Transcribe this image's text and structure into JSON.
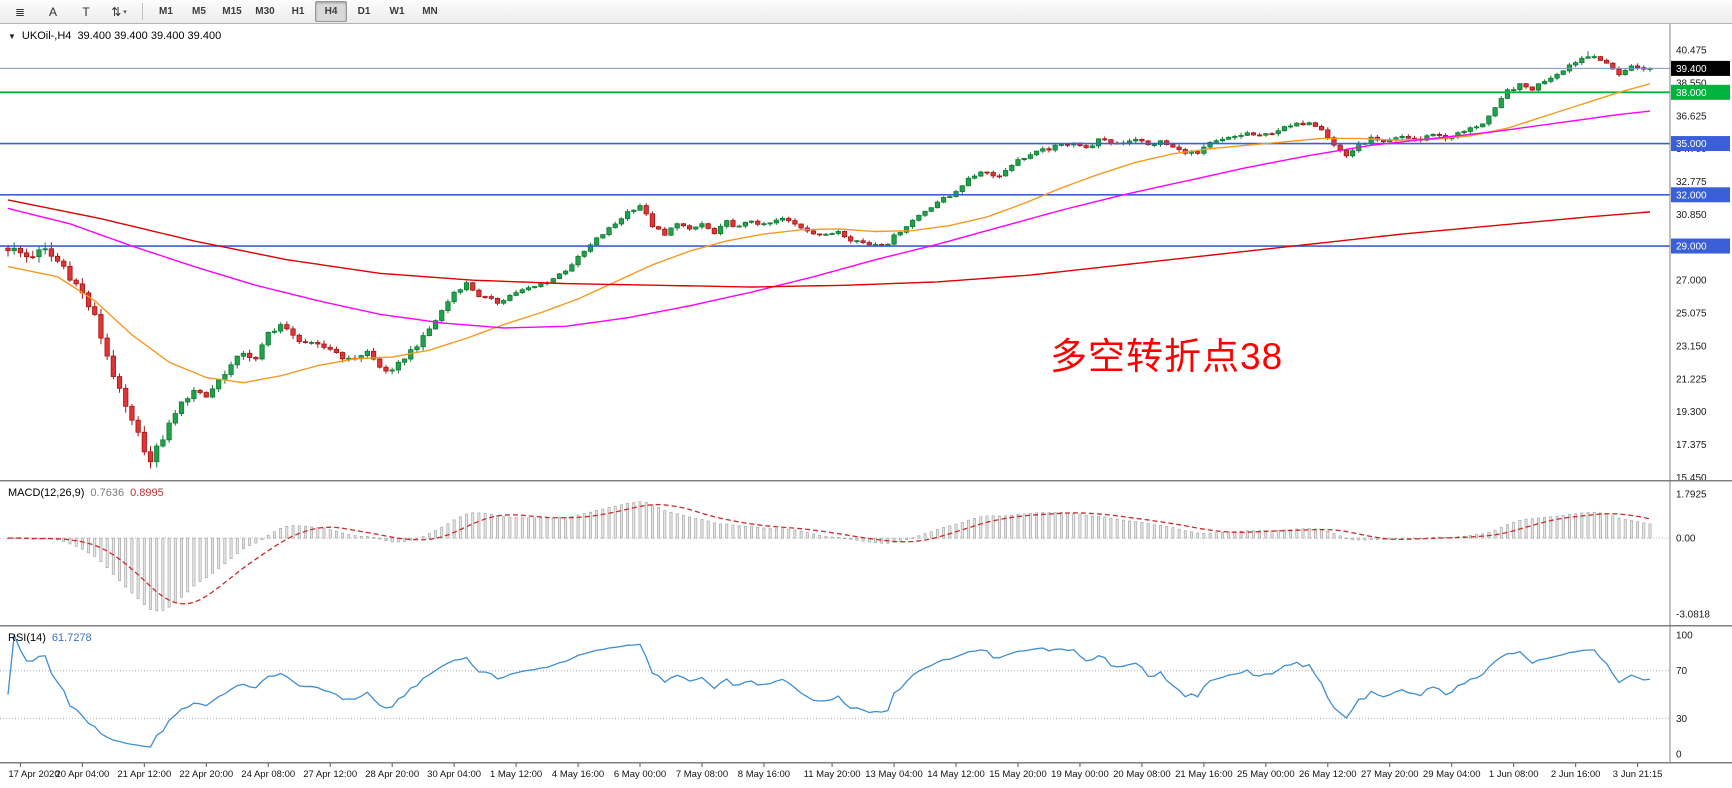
{
  "toolbar": {
    "left_buttons": [
      {
        "name": "menu",
        "glyph": "≣"
      },
      {
        "name": "cursor-a",
        "glyph": "A"
      },
      {
        "name": "text-t",
        "glyph": "T"
      },
      {
        "name": "indicator-arrows",
        "glyph": "⇅",
        "dropdown": "▾"
      }
    ],
    "timeframes": [
      "M1",
      "M5",
      "M15",
      "M30",
      "H1",
      "H4",
      "D1",
      "W1",
      "MN"
    ],
    "selected_timeframe": "H4"
  },
  "chart": {
    "dropdown_icon": "▼",
    "symbol_title": "UKOil-,H4",
    "ohlc": "39.400 39.400 39.400 39.400",
    "annotation": {
      "text": "多空转折点38",
      "color": "#ff0000"
    }
  },
  "panels": {
    "macd": {
      "label": "MACD(12,26,9)",
      "value": "0.7636",
      "signal_value": "0.8995"
    },
    "rsi": {
      "label": "RSI(14)",
      "value": "61.7278"
    }
  },
  "chart_data": {
    "type": "candlestick",
    "symbol": "UKOil",
    "timeframe": "H4",
    "current_price": 39.4,
    "price_range_view": [
      15.3,
      42.0
    ],
    "price_axis_ticks": [
      "40.475",
      "38.550",
      "36.625",
      "34.700",
      "32.775",
      "30.850",
      "28.925",
      "27.000",
      "25.075",
      "23.150",
      "21.225",
      "19.300",
      "17.375",
      "15.450"
    ],
    "horizontal_levels": [
      {
        "price": 39.4,
        "color": "#7d94c6",
        "width": 1,
        "badge": "39.400",
        "badge_bg": "#000000"
      },
      {
        "price": 38.0,
        "color": "#00b43c",
        "width": 1.8,
        "badge": "38.000",
        "badge_bg": "#00b43c"
      },
      {
        "price": 35.0,
        "color": "#3a5fd9",
        "width": 1.6,
        "badge": "35.000",
        "badge_bg": "#3a5fd9"
      },
      {
        "price": 32.0,
        "color": "#3a5fd9",
        "width": 1.6,
        "badge": "32.000",
        "badge_bg": "#3a5fd9"
      },
      {
        "price": 29.0,
        "color": "#3a5fd9",
        "width": 1.6,
        "badge": "29.000",
        "badge_bg": "#3a5fd9"
      }
    ],
    "x_labels": [
      "17 Apr 2020",
      "20 Apr 04:00",
      "21 Apr 12:00",
      "22 Apr 20:00",
      "24 Apr 08:00",
      "27 Apr 12:00",
      "28 Apr 20:00",
      "30 Apr 04:00",
      "1 May 12:00",
      "4 May 16:00",
      "6 May 00:00",
      "7 May 08:00",
      "8 May 16:00",
      "11 May 20:00",
      "13 May 04:00",
      "14 May 12:00",
      "15 May 20:00",
      "19 May 00:00",
      "20 May 08:00",
      "21 May 16:00",
      "25 May 00:00",
      "26 May 12:00",
      "27 May 20:00",
      "29 May 04:00",
      "1 Jun 08:00",
      "2 Jun 16:00",
      "3 Jun 21:15"
    ],
    "n_candles": 266,
    "up_color": "#1fa24a",
    "down_color": "#e03535",
    "extremes": {
      "low_index": 23,
      "low": 15.98,
      "high_index": 255,
      "high": 40.4
    },
    "close_waypoints": [
      [
        0,
        28.9
      ],
      [
        3,
        28.4
      ],
      [
        6,
        28.7
      ],
      [
        9,
        27.8
      ],
      [
        12,
        26.2
      ],
      [
        14,
        24.8
      ],
      [
        16,
        22.6
      ],
      [
        18,
        20.4
      ],
      [
        20,
        18.6
      ],
      [
        22,
        17.2
      ],
      [
        23,
        16.3
      ],
      [
        25,
        17.8
      ],
      [
        27,
        19.3
      ],
      [
        30,
        20.6
      ],
      [
        32,
        20.2
      ],
      [
        35,
        21.6
      ],
      [
        38,
        22.8
      ],
      [
        40,
        22.3
      ],
      [
        42,
        23.9
      ],
      [
        44,
        24.4
      ],
      [
        46,
        23.7
      ],
      [
        49,
        23.2
      ],
      [
        52,
        23.0
      ],
      [
        55,
        22.3
      ],
      [
        58,
        22.8
      ],
      [
        60,
        21.9
      ],
      [
        62,
        21.6
      ],
      [
        64,
        22.5
      ],
      [
        67,
        23.6
      ],
      [
        70,
        25.2
      ],
      [
        72,
        26.3
      ],
      [
        74,
        26.8
      ],
      [
        76,
        26.1
      ],
      [
        79,
        25.7
      ],
      [
        82,
        26.3
      ],
      [
        85,
        26.6
      ],
      [
        88,
        27.1
      ],
      [
        90,
        27.6
      ],
      [
        92,
        28.3
      ],
      [
        95,
        29.4
      ],
      [
        98,
        30.3
      ],
      [
        100,
        31.0
      ],
      [
        102,
        31.4
      ],
      [
        104,
        30.2
      ],
      [
        106,
        29.6
      ],
      [
        108,
        30.4
      ],
      [
        110,
        29.9
      ],
      [
        112,
        30.3
      ],
      [
        114,
        29.7
      ],
      [
        116,
        30.4
      ],
      [
        118,
        30.1
      ],
      [
        120,
        30.5
      ],
      [
        122,
        30.2
      ],
      [
        125,
        30.6
      ],
      [
        128,
        30.1
      ],
      [
        130,
        29.8
      ],
      [
        132,
        29.6
      ],
      [
        134,
        29.9
      ],
      [
        136,
        29.4
      ],
      [
        139,
        29.1
      ],
      [
        142,
        29.2
      ],
      [
        144,
        29.9
      ],
      [
        147,
        30.8
      ],
      [
        150,
        31.6
      ],
      [
        152,
        31.9
      ],
      [
        154,
        32.6
      ],
      [
        157,
        33.4
      ],
      [
        160,
        33.1
      ],
      [
        162,
        33.8
      ],
      [
        164,
        34.2
      ],
      [
        167,
        34.6
      ],
      [
        170,
        34.9
      ],
      [
        172,
        35.1
      ],
      [
        174,
        34.7
      ],
      [
        176,
        35.2
      ],
      [
        179,
        35.0
      ],
      [
        182,
        35.3
      ],
      [
        184,
        34.9
      ],
      [
        186,
        35.1
      ],
      [
        189,
        34.6
      ],
      [
        192,
        34.4
      ],
      [
        194,
        35.0
      ],
      [
        197,
        35.3
      ],
      [
        200,
        35.6
      ],
      [
        202,
        35.4
      ],
      [
        205,
        35.8
      ],
      [
        208,
        36.1
      ],
      [
        210,
        36.3
      ],
      [
        212,
        35.9
      ],
      [
        214,
        34.9
      ],
      [
        216,
        34.3
      ],
      [
        218,
        34.9
      ],
      [
        220,
        35.3
      ],
      [
        222,
        35.0
      ],
      [
        225,
        35.4
      ],
      [
        228,
        35.2
      ],
      [
        230,
        35.6
      ],
      [
        232,
        35.3
      ],
      [
        235,
        35.7
      ],
      [
        238,
        36.2
      ],
      [
        240,
        37.0
      ],
      [
        242,
        38.1
      ],
      [
        244,
        38.4
      ],
      [
        246,
        38.2
      ],
      [
        248,
        38.7
      ],
      [
        250,
        39.1
      ],
      [
        252,
        39.6
      ],
      [
        254,
        40.0
      ],
      [
        256,
        40.2
      ],
      [
        258,
        39.6
      ],
      [
        260,
        39.1
      ],
      [
        262,
        39.5
      ],
      [
        265,
        39.4
      ]
    ],
    "ma_lines": [
      {
        "name": "ma-fast",
        "color": "#f59a23",
        "points": [
          [
            0,
            27.8
          ],
          [
            8,
            27.2
          ],
          [
            14,
            25.8
          ],
          [
            20,
            23.8
          ],
          [
            26,
            22.2
          ],
          [
            32,
            21.3
          ],
          [
            38,
            21.0
          ],
          [
            44,
            21.4
          ],
          [
            50,
            22.0
          ],
          [
            56,
            22.4
          ],
          [
            62,
            22.5
          ],
          [
            68,
            22.9
          ],
          [
            74,
            23.6
          ],
          [
            80,
            24.4
          ],
          [
            86,
            25.1
          ],
          [
            92,
            25.9
          ],
          [
            98,
            26.9
          ],
          [
            104,
            27.9
          ],
          [
            110,
            28.7
          ],
          [
            116,
            29.3
          ],
          [
            122,
            29.7
          ],
          [
            128,
            29.95
          ],
          [
            134,
            30.0
          ],
          [
            140,
            29.85
          ],
          [
            146,
            29.9
          ],
          [
            152,
            30.2
          ],
          [
            158,
            30.7
          ],
          [
            164,
            31.5
          ],
          [
            170,
            32.4
          ],
          [
            176,
            33.2
          ],
          [
            182,
            33.9
          ],
          [
            188,
            34.4
          ],
          [
            194,
            34.7
          ],
          [
            200,
            34.9
          ],
          [
            206,
            35.1
          ],
          [
            212,
            35.3
          ],
          [
            218,
            35.3
          ],
          [
            224,
            35.2
          ],
          [
            230,
            35.25
          ],
          [
            236,
            35.45
          ],
          [
            242,
            35.9
          ],
          [
            248,
            36.6
          ],
          [
            254,
            37.3
          ],
          [
            260,
            38.0
          ],
          [
            265,
            38.5
          ]
        ]
      },
      {
        "name": "ma-medium",
        "color": "#ff00ff",
        "points": [
          [
            0,
            31.2
          ],
          [
            10,
            30.3
          ],
          [
            20,
            29.0
          ],
          [
            30,
            27.8
          ],
          [
            40,
            26.7
          ],
          [
            50,
            25.8
          ],
          [
            60,
            25.0
          ],
          [
            70,
            24.5
          ],
          [
            80,
            24.2
          ],
          [
            90,
            24.3
          ],
          [
            100,
            24.8
          ],
          [
            110,
            25.5
          ],
          [
            120,
            26.3
          ],
          [
            130,
            27.2
          ],
          [
            140,
            28.2
          ],
          [
            150,
            29.1
          ],
          [
            160,
            30.1
          ],
          [
            170,
            31.1
          ],
          [
            180,
            32.0
          ],
          [
            190,
            32.8
          ],
          [
            200,
            33.6
          ],
          [
            210,
            34.3
          ],
          [
            220,
            34.9
          ],
          [
            230,
            35.3
          ],
          [
            240,
            35.7
          ],
          [
            250,
            36.2
          ],
          [
            260,
            36.7
          ],
          [
            265,
            36.9
          ]
        ]
      },
      {
        "name": "ma-slow",
        "color": "#e00000",
        "points": [
          [
            0,
            31.7
          ],
          [
            15,
            30.6
          ],
          [
            30,
            29.3
          ],
          [
            45,
            28.2
          ],
          [
            60,
            27.4
          ],
          [
            75,
            27.0
          ],
          [
            90,
            26.8
          ],
          [
            105,
            26.7
          ],
          [
            120,
            26.6
          ],
          [
            135,
            26.7
          ],
          [
            150,
            26.9
          ],
          [
            165,
            27.3
          ],
          [
            180,
            27.9
          ],
          [
            195,
            28.5
          ],
          [
            210,
            29.1
          ],
          [
            225,
            29.7
          ],
          [
            240,
            30.2
          ],
          [
            255,
            30.7
          ],
          [
            265,
            31.0
          ]
        ]
      }
    ],
    "macd": {
      "fast": 12,
      "slow": 26,
      "signal": 9,
      "current": 0.7636,
      "current_signal": 0.8995,
      "scale_range": [
        -3.0818,
        1.7925
      ],
      "scale_labels": [
        "1.7925",
        "0.00",
        "-3.0818"
      ],
      "hist_fill": "#e6e6e6",
      "hist_stroke": "#9c9c9c",
      "signal_color": "#cc2a2a"
    },
    "rsi": {
      "period": 14,
      "current": 61.7278,
      "levels": [
        70,
        30
      ],
      "scale_labels": [
        "100",
        "70",
        "30",
        "0"
      ],
      "line_color": "#3e8ed0",
      "range": [
        0,
        100
      ]
    }
  }
}
